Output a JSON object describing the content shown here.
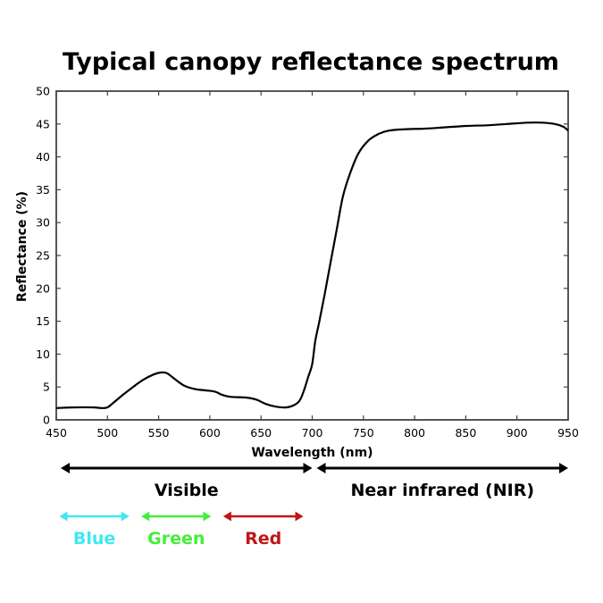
{
  "chart_data": {
    "type": "line",
    "title": "Typical canopy reflectance spectrum",
    "xlabel": "Wavelength (nm)",
    "ylabel": "Reflectance (%)",
    "xlim": [
      450,
      950
    ],
    "ylim": [
      0,
      50
    ],
    "x_ticks": [
      450,
      500,
      550,
      600,
      650,
      700,
      750,
      800,
      850,
      900,
      950
    ],
    "y_ticks": [
      0,
      5,
      10,
      15,
      20,
      25,
      30,
      35,
      40,
      45,
      50
    ],
    "grid": false,
    "series": [
      {
        "color": "#000000",
        "points": [
          [
            450,
            1.8
          ],
          [
            470,
            1.9
          ],
          [
            485,
            1.9
          ],
          [
            495,
            1.8
          ],
          [
            500,
            1.9
          ],
          [
            505,
            2.5
          ],
          [
            515,
            3.8
          ],
          [
            525,
            5.0
          ],
          [
            535,
            6.1
          ],
          [
            545,
            6.9
          ],
          [
            552,
            7.2
          ],
          [
            558,
            7.1
          ],
          [
            565,
            6.3
          ],
          [
            575,
            5.2
          ],
          [
            585,
            4.7
          ],
          [
            595,
            4.5
          ],
          [
            605,
            4.3
          ],
          [
            612,
            3.8
          ],
          [
            620,
            3.5
          ],
          [
            635,
            3.4
          ],
          [
            645,
            3.1
          ],
          [
            655,
            2.4
          ],
          [
            665,
            2.0
          ],
          [
            675,
            1.9
          ],
          [
            683,
            2.3
          ],
          [
            688,
            3.0
          ],
          [
            692,
            4.5
          ],
          [
            696,
            6.5
          ],
          [
            700,
            8.5
          ],
          [
            703,
            12.0
          ],
          [
            707,
            15.0
          ],
          [
            712,
            19.0
          ],
          [
            718,
            24.0
          ],
          [
            724,
            29.0
          ],
          [
            730,
            34.0
          ],
          [
            737,
            37.5
          ],
          [
            745,
            40.5
          ],
          [
            755,
            42.5
          ],
          [
            765,
            43.5
          ],
          [
            775,
            44.0
          ],
          [
            790,
            44.2
          ],
          [
            810,
            44.3
          ],
          [
            830,
            44.5
          ],
          [
            850,
            44.7
          ],
          [
            870,
            44.8
          ],
          [
            890,
            45.0
          ],
          [
            910,
            45.2
          ],
          [
            925,
            45.2
          ],
          [
            937,
            45.0
          ],
          [
            945,
            44.6
          ],
          [
            950,
            44.0
          ]
        ]
      }
    ],
    "bands": [
      {
        "label": "Visible",
        "start": 450,
        "end": 700,
        "color": "#000000"
      },
      {
        "label": "Near infrared (NIR)",
        "start": 700,
        "end": 950,
        "color": "#000000"
      },
      {
        "label": "Blue",
        "start": 450,
        "end": 520,
        "color": "#3ee8f0"
      },
      {
        "label": "Green",
        "start": 530,
        "end": 600,
        "color": "#44ee3a"
      },
      {
        "label": "Red",
        "start": 610,
        "end": 690,
        "color": "#c01515"
      }
    ]
  }
}
